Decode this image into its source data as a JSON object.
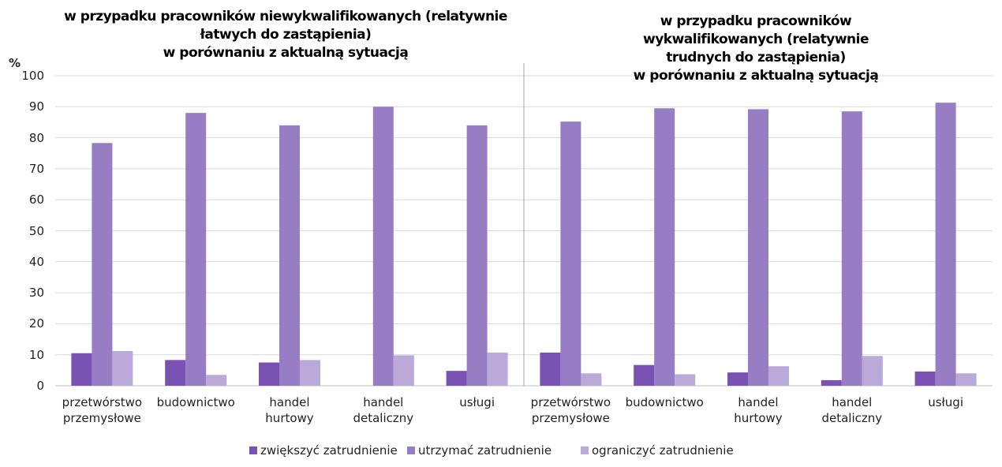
{
  "chart_data": {
    "type": "bar",
    "panel_titles": [
      "w przypadku pracowników niewykwalifikowanych (relatywnie\nłatwych do zastąpienia)\nw porównaniu z aktualną sytuacją",
      "w przypadku pracowników wykwalifikowanych (relatywnie\ntrudnych do zastąpienia)\nw porównaniu z aktualną sytuacją"
    ],
    "ylabel": "%",
    "categories": [
      "przetwórstwo\nprzemysłowe",
      "budownictwo",
      "handel\nhurtowy",
      "handel\ndetaliczny",
      "usługi",
      "przetwórstwo\nprzemysłowe",
      "budownictwo",
      "handel\nhurtowy",
      "handel\ndetaliczny",
      "usługi"
    ],
    "series": [
      {
        "name": "zwiększyć zatrudnienie",
        "color": "#7a52b3",
        "values": [
          10.5,
          8.3,
          7.5,
          0,
          4.8,
          10.7,
          6.7,
          4.3,
          1.8,
          4.6
        ]
      },
      {
        "name": "utrzymać zatrudnienie",
        "color": "#967dc4",
        "values": [
          78.3,
          88,
          84,
          90,
          84,
          85.2,
          89.5,
          89.2,
          88.5,
          91.3
        ]
      },
      {
        "name": "ograniczyć zatrudnienie",
        "color": "#bba9da",
        "values": [
          11.2,
          3.5,
          8.3,
          9.8,
          10.7,
          4,
          3.7,
          6.3,
          9.6,
          4
        ]
      }
    ],
    "ylim": [
      0,
      100
    ],
    "yticks": [
      0,
      10,
      20,
      30,
      40,
      50,
      60,
      70,
      80,
      90,
      100
    ],
    "grid": true,
    "legend": "bottom"
  }
}
